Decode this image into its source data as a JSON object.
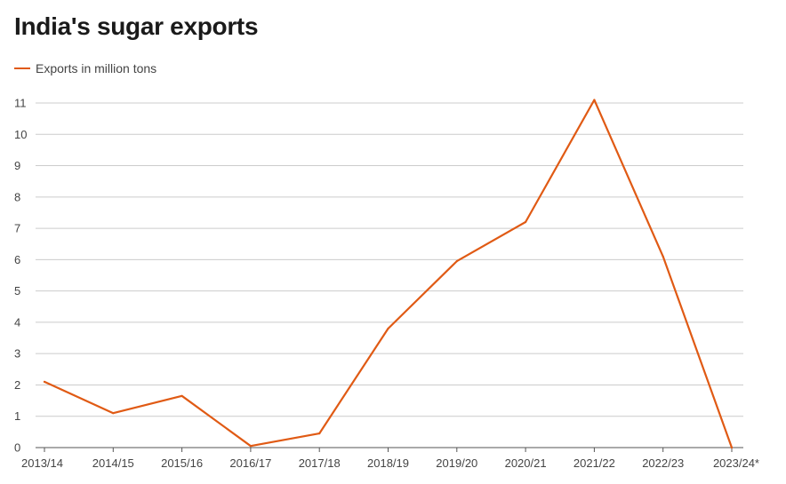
{
  "chart_data": {
    "type": "line",
    "title": "India's sugar exports",
    "xlabel": "",
    "ylabel": "",
    "ylim": [
      0,
      11
    ],
    "yticks": [
      "0",
      "1",
      "2",
      "3",
      "4",
      "5",
      "6",
      "7",
      "8",
      "9",
      "10",
      "11"
    ],
    "categories": [
      "2013/14",
      "2014/15",
      "2015/16",
      "2016/17",
      "2017/18",
      "2018/19",
      "2019/20",
      "2020/21",
      "2021/22",
      "2022/23",
      "2023/24*"
    ],
    "series": [
      {
        "name": "Exports in million tons",
        "color": "#e05a14",
        "values": [
          2.1,
          1.1,
          1.65,
          0.05,
          0.45,
          3.8,
          5.95,
          7.2,
          11.1,
          6.1,
          0
        ]
      }
    ],
    "grid": true,
    "legend": "top-left"
  }
}
